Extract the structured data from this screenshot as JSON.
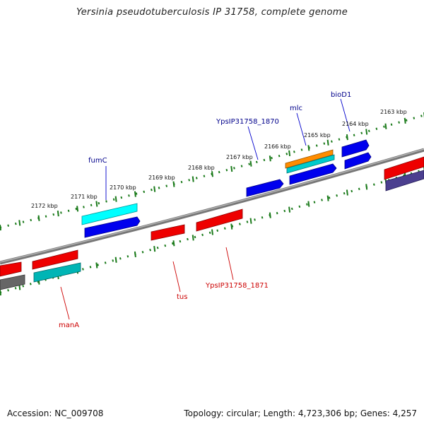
{
  "title": "Yersinia pseudotuberculosis IP 31758, complete genome",
  "footer": {
    "accession": "Accession: NC_009708",
    "topology": "Topology: circular; Length: 4,723,306 bp; Genes: 4,257"
  },
  "colors": {
    "backbone": "#888888",
    "ticks": "#1a7a1a",
    "label_forward": "#00008b",
    "label_reverse": "#cc0000"
  },
  "upper_ticks": [
    {
      "label": "2172 kbp"
    },
    {
      "label": "2171 kbp"
    },
    {
      "label": "2170 kbp"
    },
    {
      "label": "2169 kbp"
    },
    {
      "label": "2168 kbp"
    },
    {
      "label": "2167 kbp"
    },
    {
      "label": "2166 kbp"
    },
    {
      "label": "2165 kbp"
    },
    {
      "label": "2164 kbp"
    },
    {
      "label": "2163 kbp"
    }
  ],
  "forward_gene_labels": [
    "fumC",
    "YpsIP31758_1870",
    "mlc",
    "bioD1"
  ],
  "reverse_gene_labels": [
    "manA",
    "tus",
    "YpsIP31758_1871"
  ]
}
